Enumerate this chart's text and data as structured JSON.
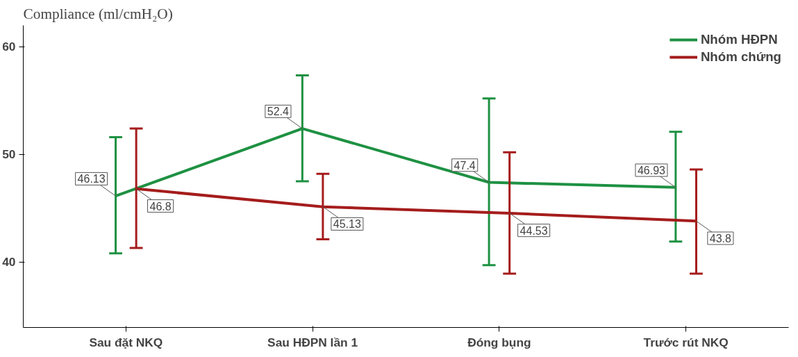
{
  "chart_data": {
    "type": "line",
    "title": "Compliance (ml/cmH₂O)",
    "categories": [
      "Sau đặt NKQ",
      "Sau HĐPN lần 1",
      "Đóng bụng",
      "Trước rút NKQ"
    ],
    "series": [
      {
        "name": "Nhóm HĐPN",
        "color": "#1e9142",
        "values": [
          46.13,
          52.4,
          47.4,
          46.93
        ],
        "errors": [
          [
            40.8,
            51.6
          ],
          [
            47.5,
            57.35
          ],
          [
            39.7,
            55.2
          ],
          [
            41.9,
            52.1
          ]
        ]
      },
      {
        "name": "Nhóm chứng",
        "color": "#a51c1c",
        "values": [
          46.8,
          45.13,
          44.53,
          43.8
        ],
        "errors": [
          [
            41.3,
            52.4
          ],
          [
            42.1,
            48.2
          ],
          [
            38.9,
            50.2
          ],
          [
            38.9,
            48.6
          ]
        ]
      }
    ],
    "ylim": [
      33.9,
      62
    ],
    "yticks": [
      40,
      50,
      60
    ],
    "grid": false,
    "legend": "top right",
    "data_labels": true,
    "marker": "none"
  }
}
